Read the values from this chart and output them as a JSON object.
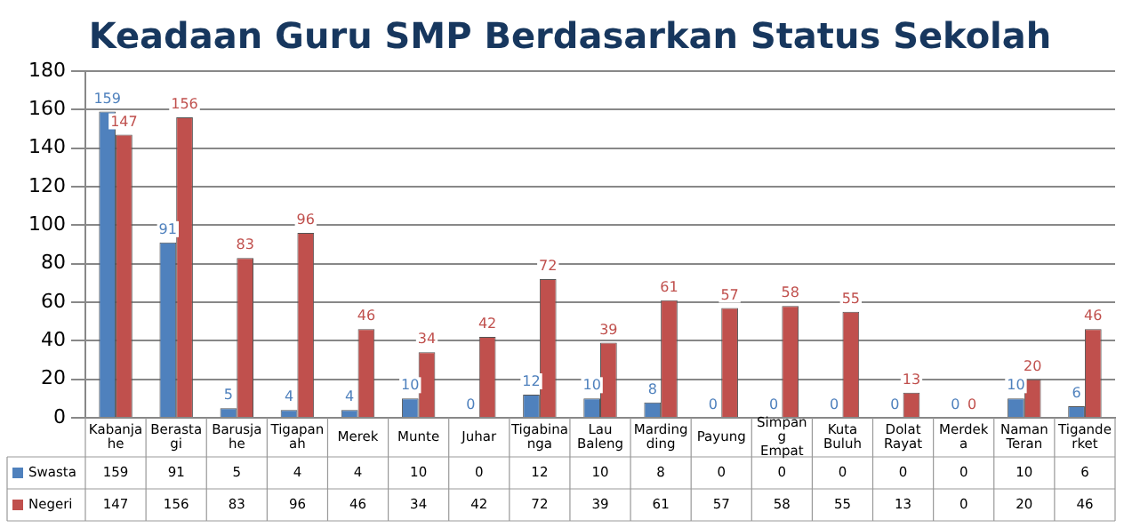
{
  "chart_data": {
    "type": "bar",
    "title": "Keadaan Guru SMP Berdasarkan Status Sekolah",
    "categories": [
      "Kabanjahe",
      "Berastagi",
      "Barusjahe",
      "Tigapanah",
      "Merek",
      "Munte",
      "Juhar",
      "Tigabinanga",
      "Lau Baleng",
      "Mardingding",
      "Payung",
      "Simpang Empat",
      "Kuta Buluh",
      "Dolat Rayat",
      "Merdeka",
      "Naman Teran",
      "Tiganderket"
    ],
    "series": [
      {
        "name": "Swasta",
        "color": "#4f81bd",
        "values": [
          159,
          91,
          5,
          4,
          4,
          10,
          0,
          12,
          10,
          8,
          0,
          0,
          0,
          0,
          0,
          10,
          6
        ]
      },
      {
        "name": "Negeri",
        "color": "#c0504d",
        "values": [
          147,
          156,
          83,
          96,
          46,
          34,
          42,
          72,
          39,
          61,
          57,
          58,
          55,
          13,
          0,
          20,
          46
        ]
      }
    ],
    "ylim": [
      0,
      180
    ],
    "yticks": [
      0,
      20,
      40,
      60,
      80,
      100,
      120,
      140,
      160,
      180
    ],
    "grid": "y",
    "data_labels": true,
    "legend": "bottom",
    "annotations": [
      {
        "text": "159",
        "x": "Kabanjahe",
        "y": 159
      },
      {
        "text": "91",
        "x": "Berastagi",
        "y": 91
      },
      {
        "text": "5",
        "x": "Barusjahe",
        "y": 5
      },
      {
        "text": "4",
        "x": "Tigapanah",
        "y": 4
      },
      {
        "text": "4",
        "x": "Merek",
        "y": 4
      },
      {
        "text": "10",
        "x": "Munte",
        "y": 10
      },
      {
        "text": "0",
        "x": "Juhar",
        "y": 0
      },
      {
        "text": "12",
        "x": "Tigabinanga",
        "y": 12
      },
      {
        "text": "10",
        "x": "Lau Baleng",
        "y": 10
      },
      {
        "text": "8",
        "x": "Mardingding",
        "y": 8
      },
      {
        "text": "0",
        "x": "Payung",
        "y": 0
      },
      {
        "text": "0",
        "x": "Simpang Empat",
        "y": 0
      },
      {
        "text": "0",
        "x": "Kuta Buluh",
        "y": 0
      },
      {
        "text": "0",
        "x": "Dolat Rayat",
        "y": 0
      },
      {
        "text": "0",
        "x": "Merdeka",
        "y": 0
      },
      {
        "text": "10",
        "x": "Naman Teran",
        "y": 10
      },
      {
        "text": "6",
        "x": "Tiganderket",
        "y": 6
      },
      {
        "text": "147",
        "x": "Kabanjahe",
        "y": 147
      },
      {
        "text": "156",
        "x": "Berastagi",
        "y": 156
      },
      {
        "text": "83",
        "x": "Barusjahe",
        "y": 83
      },
      {
        "text": "96",
        "x": "Tigapanah",
        "y": 96
      },
      {
        "text": "46",
        "x": "Merek",
        "y": 46
      },
      {
        "text": "34",
        "x": "Munte",
        "y": 34
      },
      {
        "text": "42",
        "x": "Juhar",
        "y": 42
      },
      {
        "text": "72",
        "x": "Tigabinanga",
        "y": 72
      },
      {
        "text": "39",
        "x": "Lau Baleng",
        "y": 39
      },
      {
        "text": "61",
        "x": "Mardingding",
        "y": 61
      },
      {
        "text": "57",
        "x": "Payung",
        "y": 57
      },
      {
        "text": "58",
        "x": "Simpang Empat",
        "y": 58
      },
      {
        "text": "55",
        "x": "Kuta Buluh",
        "y": 55
      },
      {
        "text": "13",
        "x": "Dolat Rayat",
        "y": 13
      },
      {
        "text": "0",
        "x": "Merdeka",
        "y": 0
      },
      {
        "text": "20",
        "x": "Naman Teran",
        "y": 20
      },
      {
        "text": "46",
        "x": "Tiganderket",
        "y": 46
      }
    ]
  }
}
